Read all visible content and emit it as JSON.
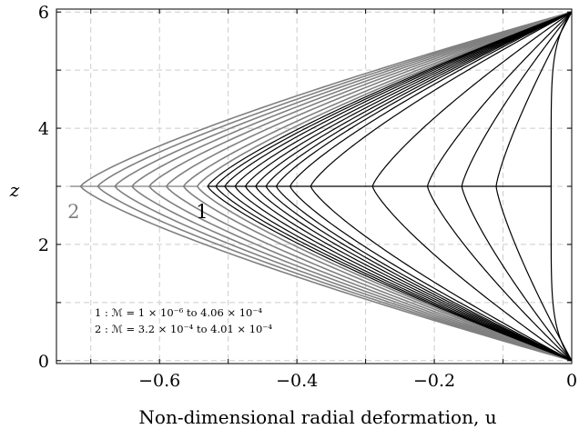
{
  "chart_data": {
    "type": "line",
    "xlabel": "Non-dimensional radial deformation, u",
    "ylabel": "z",
    "xlim": [
      -0.75,
      0
    ],
    "ylim": [
      -0.05,
      6.05
    ],
    "xticks": [
      -0.6,
      -0.4,
      -0.2,
      0
    ],
    "xtick_labels": [
      "−0.6",
      "−0.4",
      "−0.2",
      "0"
    ],
    "yticks": [
      0,
      2,
      4,
      6
    ],
    "ytick_labels": [
      "0",
      "2",
      "4",
      "6"
    ],
    "grid": true,
    "colors": {
      "family1": "#000000",
      "family2": "#808080",
      "grid": "#cccccc"
    },
    "families": [
      {
        "name": "1",
        "color": "#000000",
        "label_position": {
          "u": -0.538,
          "z": 2.7
        },
        "curves_min_u_at_midheight": [
          -0.03,
          -0.11,
          -0.16,
          -0.21,
          -0.29,
          -0.38,
          -0.41,
          -0.43,
          -0.445,
          -0.46,
          -0.475,
          -0.49,
          -0.505,
          -0.518,
          -0.53
        ]
      },
      {
        "name": "2",
        "color": "#808080",
        "label_position": {
          "u": -0.725,
          "z": 2.7
        },
        "curves_min_u_at_midheight": [
          -0.545,
          -0.565,
          -0.59,
          -0.615,
          -0.64,
          -0.665,
          -0.69,
          -0.715
        ]
      }
    ],
    "annotations": [
      "1 : ℳ = 1 × 10⁻⁶    to    4.06 × 10⁻⁴",
      "2 : ℳ = 3.2 × 10⁻⁴    to    4.01 × 10⁻⁴"
    ]
  }
}
